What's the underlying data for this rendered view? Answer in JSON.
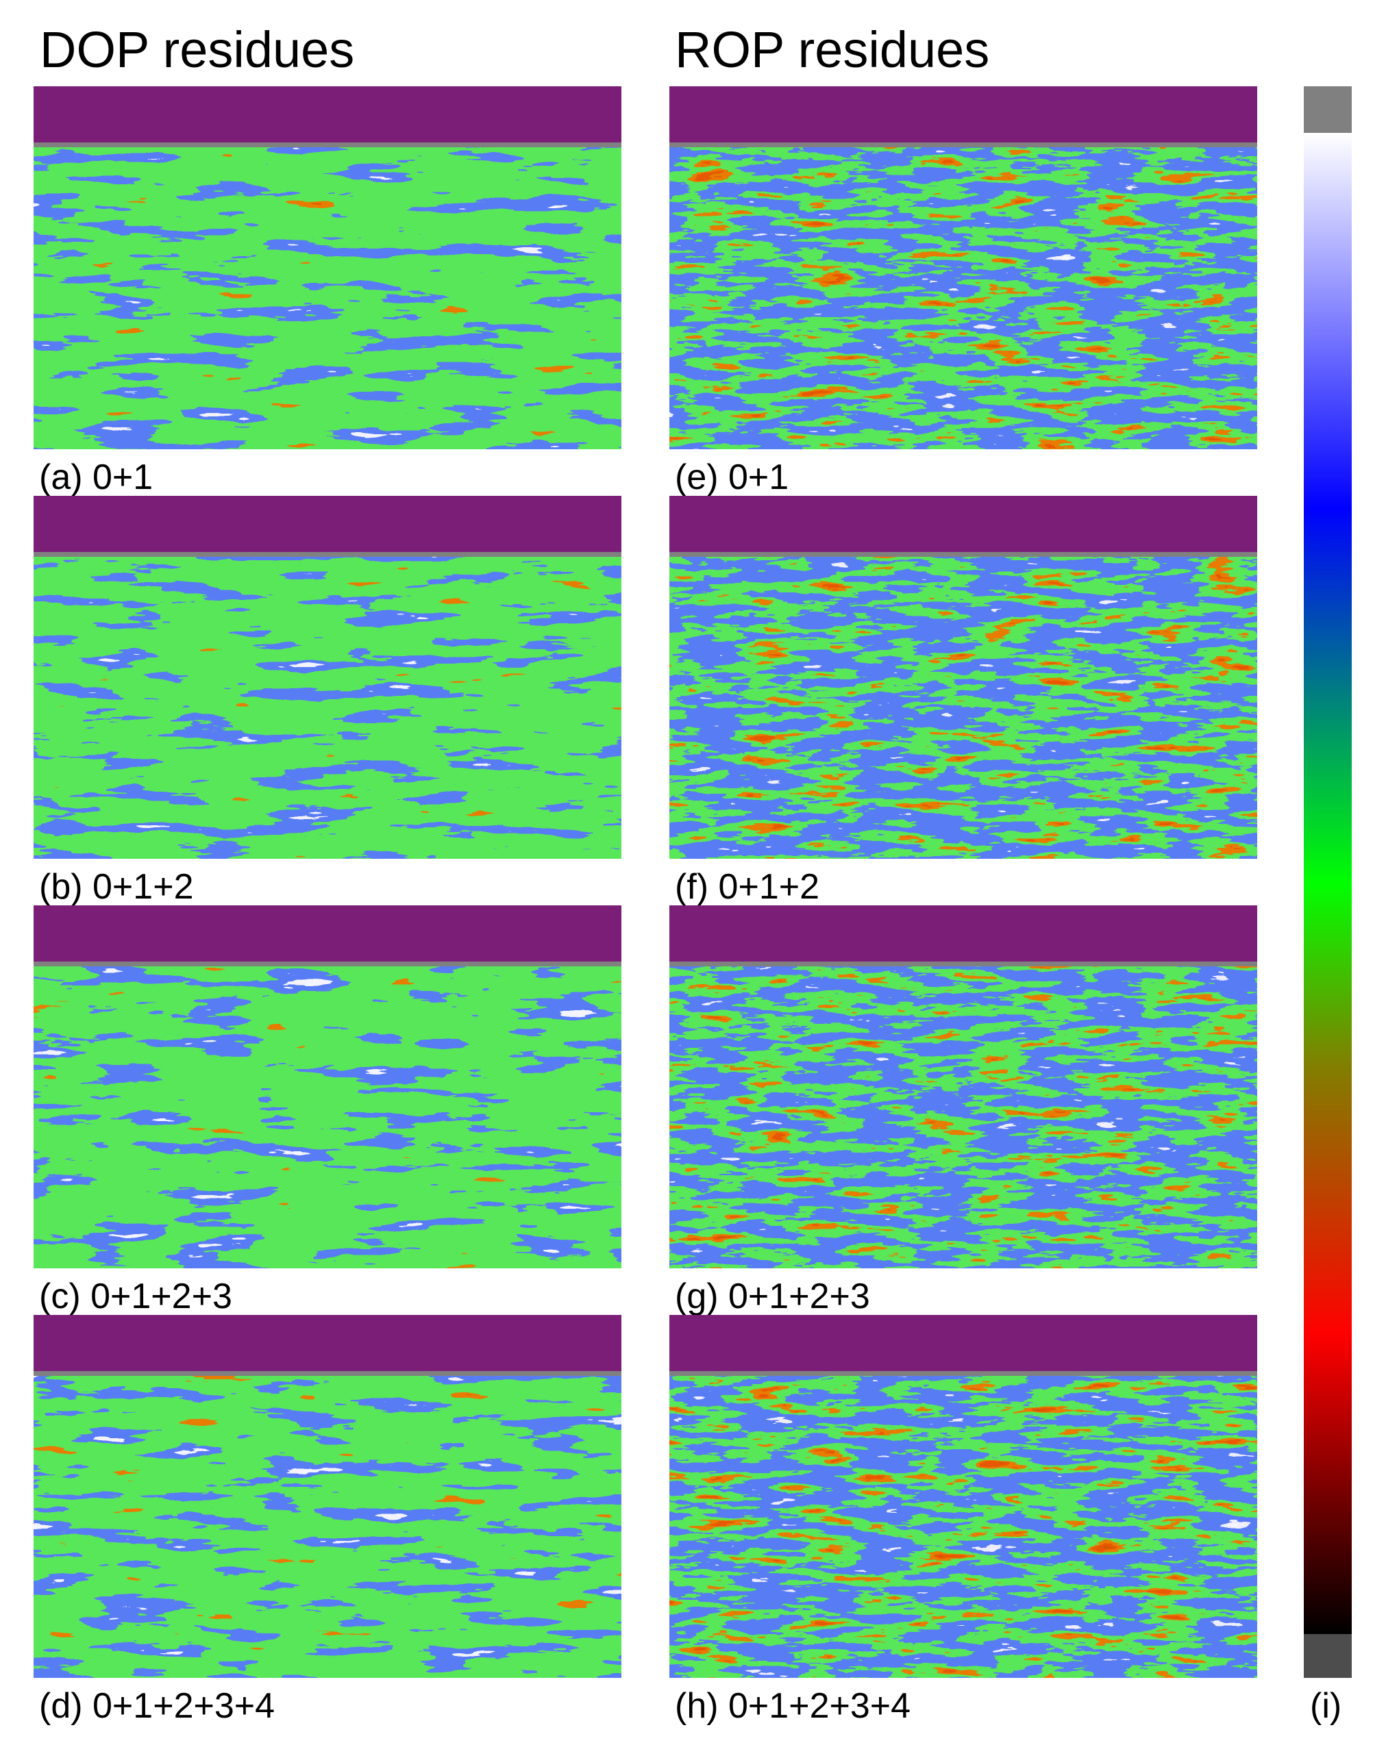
{
  "titles": {
    "dop": "DOP residues",
    "rop": "ROP residues"
  },
  "panels": [
    {
      "label": "(a) 0+1"
    },
    {
      "label": "(b) 0+1+2"
    },
    {
      "label": "(c) 0+1+2+3"
    },
    {
      "label": "(d) 0+1+2+3+4"
    },
    {
      "label": "(e) 0+1"
    },
    {
      "label": "(f) 0+1+2"
    },
    {
      "label": "(g) 0+1+2+3"
    },
    {
      "label": "(h) 0+1+2+3+4"
    }
  ],
  "colorbar": {
    "label": "(i)"
  }
}
